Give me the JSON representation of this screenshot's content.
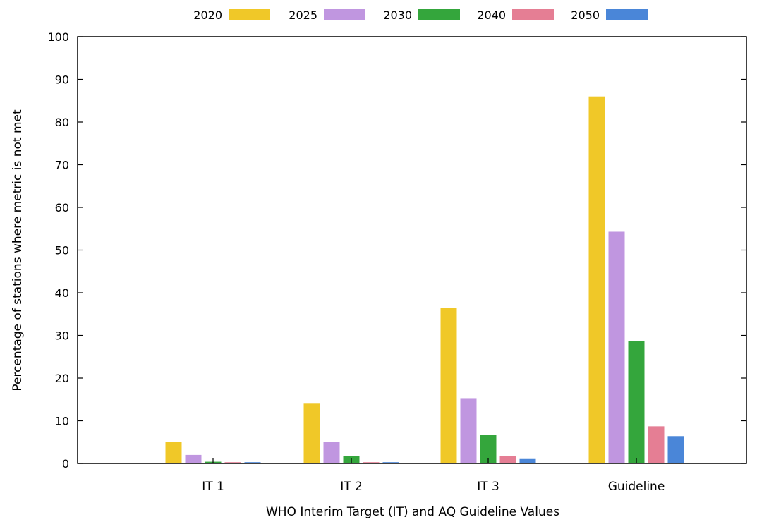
{
  "chart_data": {
    "type": "bar",
    "title": "",
    "xlabel": "WHO Interim Target (IT) and AQ Guideline Values",
    "ylabel": "Percentage of stations where metric is not met",
    "ylim": [
      0,
      100
    ],
    "yticks": [
      0,
      10,
      20,
      30,
      40,
      50,
      60,
      70,
      80,
      90,
      100
    ],
    "categories": [
      "IT 1",
      "IT 2",
      "IT 3",
      "Guideline"
    ],
    "legend_position": "top-center",
    "grid": false,
    "series": [
      {
        "name": "2020",
        "color": "#f0c828",
        "values": [
          5,
          14,
          36.5,
          86
        ]
      },
      {
        "name": "2025",
        "color": "#c096e0",
        "values": [
          2,
          5,
          15.3,
          54.3
        ]
      },
      {
        "name": "2030",
        "color": "#34a63c",
        "values": [
          0.4,
          1.8,
          6.7,
          28.7
        ]
      },
      {
        "name": "2040",
        "color": "#e57e94",
        "values": [
          0.3,
          0.3,
          1.8,
          8.7
        ]
      },
      {
        "name": "2050",
        "color": "#4a86d8",
        "values": [
          0.3,
          0.3,
          1.2,
          6.4
        ]
      }
    ]
  }
}
